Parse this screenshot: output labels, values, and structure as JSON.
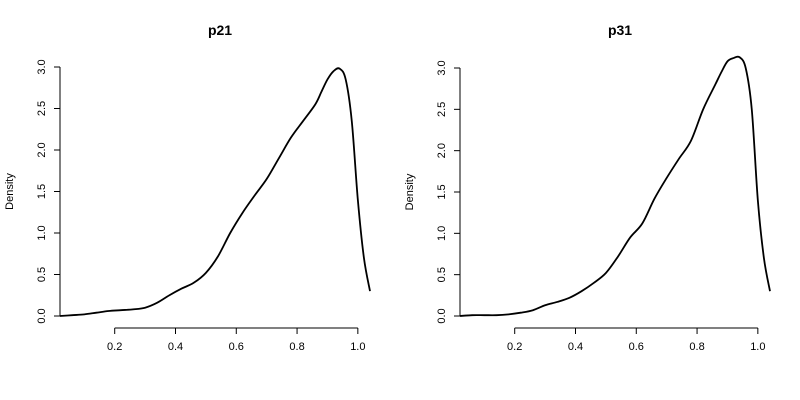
{
  "chart_data": [
    {
      "type": "line",
      "title": "p21",
      "xlabel": "",
      "ylabel": "Density",
      "xlim": [
        0.02,
        1.04
      ],
      "ylim": [
        0,
        3.0
      ],
      "xticks": [
        0.2,
        0.4,
        0.6,
        0.8,
        1.0
      ],
      "xtick_labels": [
        "0.2",
        "0.4",
        "0.6",
        "0.8",
        "1.0"
      ],
      "yticks": [
        0,
        0.5,
        1.0,
        1.5,
        2.0,
        2.5,
        3.0
      ],
      "ytick_labels": [
        "0.0",
        "0.5",
        "1.0",
        "1.5",
        "2.0",
        "2.5",
        "3.0"
      ],
      "grid": false,
      "series": [
        {
          "x": [
            0.02,
            0.06,
            0.1,
            0.14,
            0.18,
            0.22,
            0.26,
            0.3,
            0.34,
            0.38,
            0.42,
            0.46,
            0.5,
            0.54,
            0.58,
            0.62,
            0.66,
            0.7,
            0.74,
            0.78,
            0.82,
            0.86,
            0.88,
            0.9,
            0.92,
            0.94,
            0.96,
            0.98,
            1.0,
            1.02,
            1.04
          ],
          "y": [
            0.0,
            0.01,
            0.02,
            0.04,
            0.06,
            0.07,
            0.08,
            0.1,
            0.16,
            0.25,
            0.33,
            0.4,
            0.52,
            0.72,
            1.0,
            1.24,
            1.45,
            1.65,
            1.9,
            2.15,
            2.35,
            2.55,
            2.7,
            2.85,
            2.95,
            2.98,
            2.85,
            2.35,
            1.4,
            0.7,
            0.3
          ]
        }
      ]
    },
    {
      "type": "line",
      "title": "p31",
      "xlabel": "",
      "ylabel": "Density",
      "xlim": [
        0.02,
        1.04
      ],
      "ylim": [
        0,
        3.0
      ],
      "xticks": [
        0.2,
        0.4,
        0.6,
        0.8,
        1.0
      ],
      "xtick_labels": [
        "0.2",
        "0.4",
        "0.6",
        "0.8",
        "1.0"
      ],
      "yticks": [
        0,
        0.5,
        1.0,
        1.5,
        2.0,
        2.5,
        3.0
      ],
      "ytick_labels": [
        "0.0",
        "0.5",
        "1.0",
        "1.5",
        "2.0",
        "2.5",
        "3.0"
      ],
      "grid": false,
      "series": [
        {
          "x": [
            0.02,
            0.06,
            0.1,
            0.14,
            0.18,
            0.22,
            0.26,
            0.3,
            0.34,
            0.38,
            0.42,
            0.46,
            0.5,
            0.54,
            0.58,
            0.62,
            0.66,
            0.7,
            0.74,
            0.78,
            0.82,
            0.86,
            0.88,
            0.9,
            0.92,
            0.94,
            0.96,
            0.98,
            1.0,
            1.02,
            1.04
          ],
          "y": [
            0.0,
            0.01,
            0.01,
            0.01,
            0.02,
            0.04,
            0.07,
            0.13,
            0.17,
            0.22,
            0.3,
            0.4,
            0.52,
            0.72,
            0.95,
            1.12,
            1.42,
            1.67,
            1.9,
            2.12,
            2.5,
            2.8,
            2.95,
            3.08,
            3.12,
            3.13,
            3.0,
            2.5,
            1.4,
            0.7,
            0.3
          ]
        }
      ]
    }
  ]
}
